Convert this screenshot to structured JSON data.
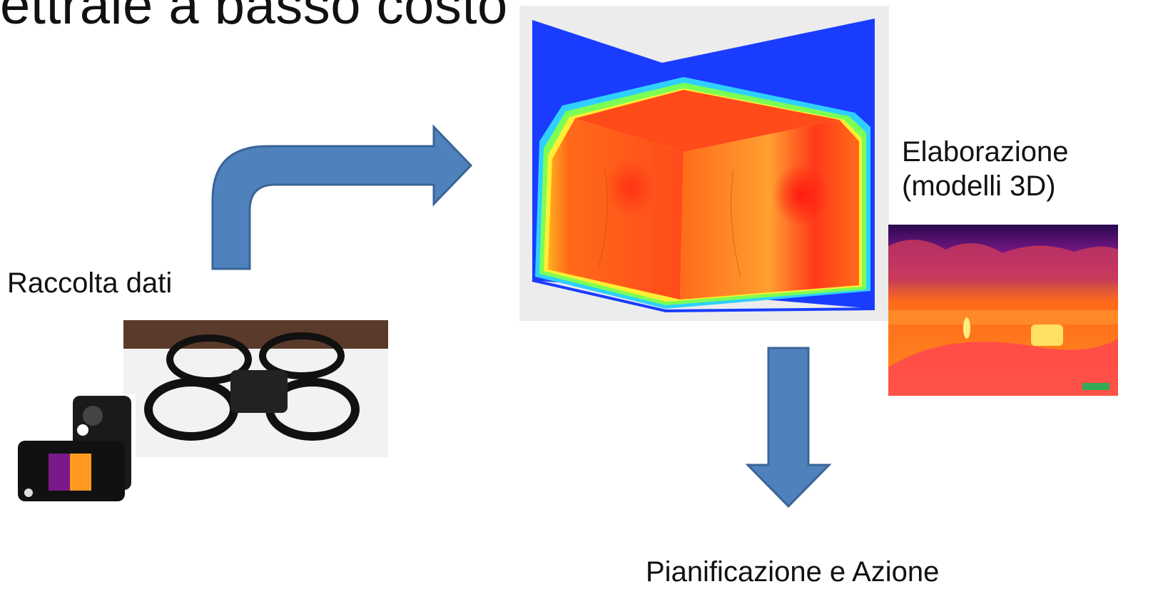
{
  "slide": {
    "title": "ettrale a basso costo",
    "labels": {
      "data_collection": "Raccolta dati",
      "processing_line1": "Elaborazione",
      "processing_line2": "(modelli 3D)",
      "planning": "Pianificazione e Azione"
    },
    "colors": {
      "arrow_fill": "#4f81bd",
      "arrow_stroke": "#3a6596",
      "thermal_hot": "#ff3b1a",
      "thermal_warm": "#ff9a1f",
      "thermal_cool": "#1a3fff"
    }
  }
}
